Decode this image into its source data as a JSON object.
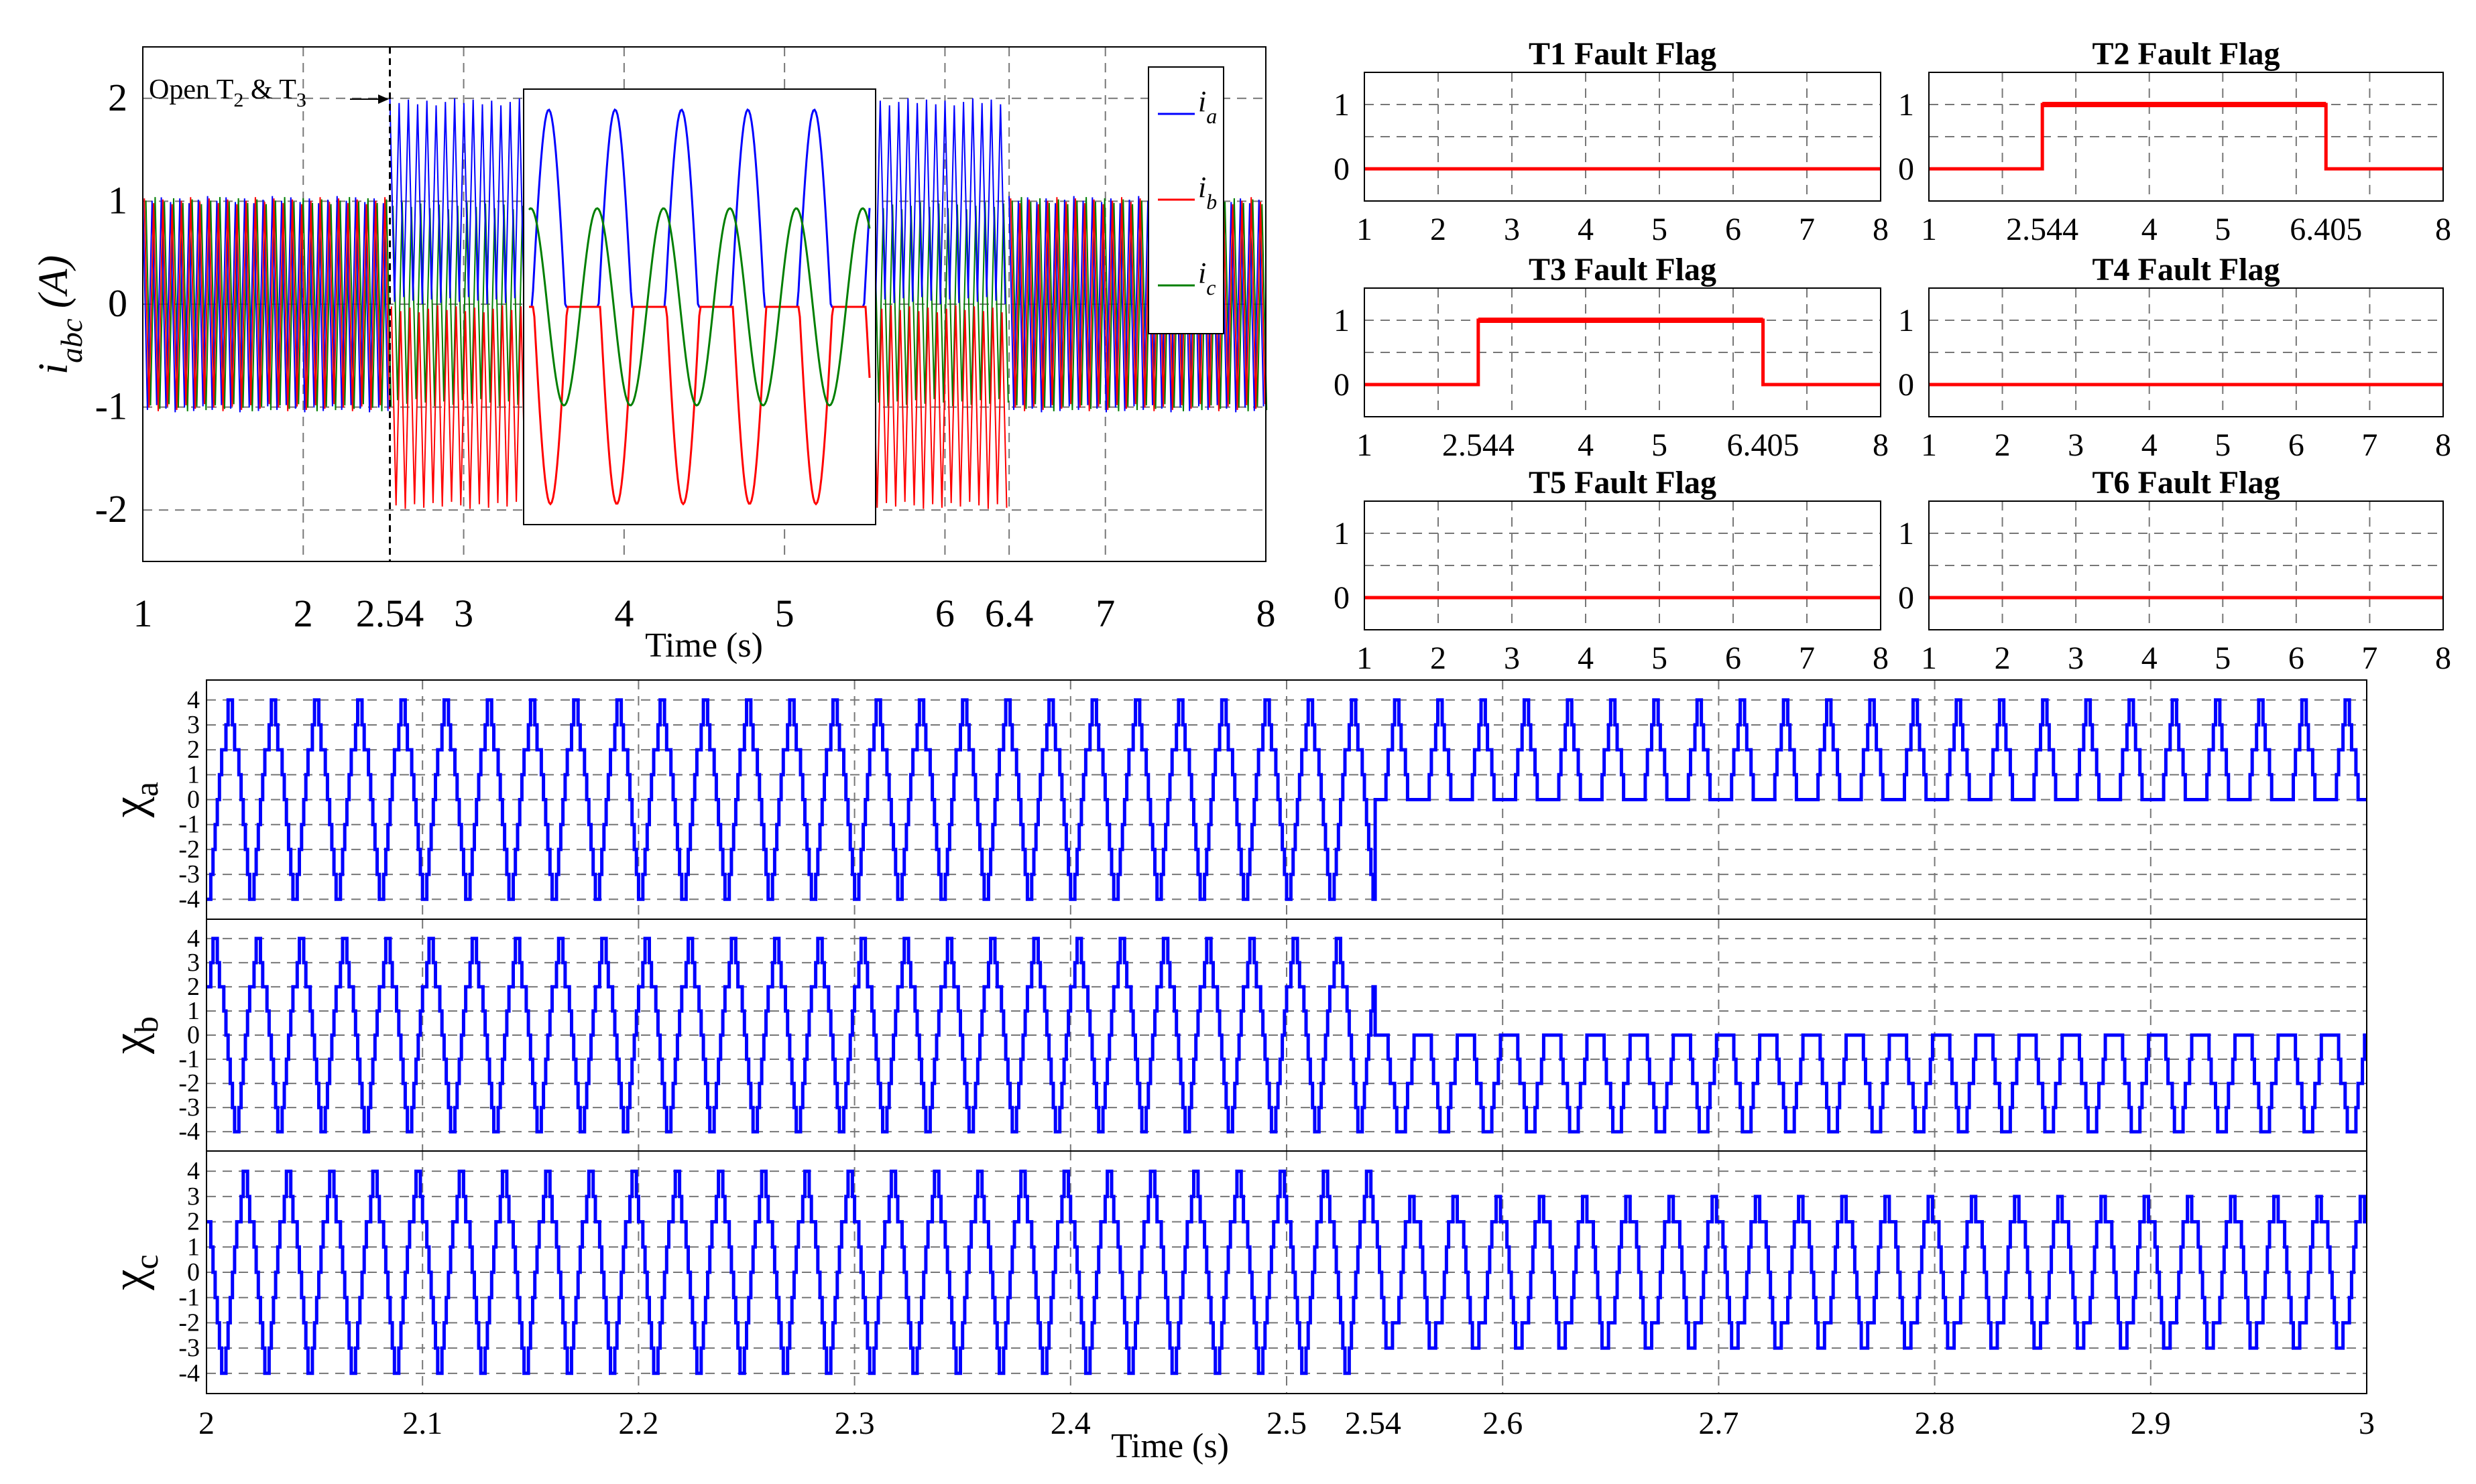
{
  "colors": {
    "ia": "#0000ff",
    "ib": "#ff0000",
    "ic": "#007f00",
    "flag": "#ff0000",
    "chi": "#0000ff"
  },
  "chart_data": [
    {
      "id": "currents",
      "type": "line",
      "title": "",
      "xlabel": "Time (s)",
      "ylabel_main": "i",
      "ylabel_sub": "abc",
      "ylabel_unit": "(A)",
      "xlim": [
        1,
        8
      ],
      "ylim": [
        -2.5,
        2.5
      ],
      "xticks": [
        "1",
        "2",
        "2.54",
        "3",
        "4",
        "5",
        "6",
        "6.4",
        "7",
        "8"
      ],
      "yticks": [
        "2",
        "1",
        "0",
        "-1",
        "-2"
      ],
      "annotation": {
        "text": "Open T",
        "sub1": "2",
        "amp": " & T",
        "sub2": "3",
        "x": 2.54
      },
      "legend": [
        {
          "main": "i",
          "sub": "a"
        },
        {
          "main": "i",
          "sub": "b"
        },
        {
          "main": "i",
          "sub": "c"
        }
      ],
      "series": [
        {
          "name": "ia",
          "segments": [
            {
              "x": [
                1,
                2.54
              ],
              "min": -1.05,
              "max": 1.05
            },
            {
              "x": [
                2.54,
                6.4
              ],
              "min": 0.0,
              "max": 2.0
            },
            {
              "x": [
                6.4,
                8
              ],
              "min": -1.05,
              "max": 1.05
            }
          ]
        },
        {
          "name": "ib",
          "segments": [
            {
              "x": [
                1,
                2.54
              ],
              "min": -1.05,
              "max": 1.05
            },
            {
              "x": [
                2.54,
                6.4
              ],
              "min": -2.0,
              "max": 0.0
            },
            {
              "x": [
                6.4,
                8
              ],
              "min": -1.05,
              "max": 1.05
            }
          ]
        },
        {
          "name": "ic",
          "segments": [
            {
              "x": [
                1,
                2.54
              ],
              "min": -1.05,
              "max": 1.05
            },
            {
              "x": [
                2.54,
                6.4
              ],
              "min": -1.0,
              "max": 1.0
            },
            {
              "x": [
                6.4,
                8
              ],
              "min": -1.05,
              "max": 1.05
            }
          ]
        }
      ],
      "inset": {
        "type": "line",
        "cycles": 5,
        "ia_peak": 2.0,
        "ib_peak": -2.0,
        "ic_amplitude": 1.0
      }
    },
    {
      "id": "T1",
      "type": "line",
      "title": "T1 Fault Flag",
      "xlim": [
        1,
        8
      ],
      "ylim": [
        -0.5,
        1.5
      ],
      "xticks": [
        "1",
        "2",
        "3",
        "4",
        "5",
        "6",
        "7",
        "8"
      ],
      "yticks": [
        "1",
        "0"
      ],
      "flag_on": null
    },
    {
      "id": "T2",
      "type": "line",
      "title": "T2 Fault Flag",
      "xlim": [
        1,
        8
      ],
      "ylim": [
        -0.5,
        1.5
      ],
      "xticks": [
        "1",
        "2.544",
        "4",
        "5",
        "6.405",
        "8"
      ],
      "yticks": [
        "1",
        "0"
      ],
      "flag_on": [
        2.544,
        6.405
      ]
    },
    {
      "id": "T3",
      "type": "line",
      "title": "T3 Fault Flag",
      "xlim": [
        1,
        8
      ],
      "ylim": [
        -0.5,
        1.5
      ],
      "xticks": [
        "1",
        "2.544",
        "4",
        "5",
        "6.405",
        "8"
      ],
      "yticks": [
        "1",
        "0"
      ],
      "flag_on": [
        2.544,
        6.405
      ]
    },
    {
      "id": "T4",
      "type": "line",
      "title": "T4 Fault Flag",
      "xlim": [
        1,
        8
      ],
      "ylim": [
        -0.5,
        1.5
      ],
      "xticks": [
        "1",
        "2",
        "3",
        "4",
        "5",
        "6",
        "7",
        "8"
      ],
      "yticks": [
        "1",
        "0"
      ],
      "flag_on": null
    },
    {
      "id": "T5",
      "type": "line",
      "title": "T5 Fault Flag",
      "xlim": [
        1,
        8
      ],
      "ylim": [
        -0.5,
        1.5
      ],
      "xticks": [
        "1",
        "2",
        "3",
        "4",
        "5",
        "6",
        "7",
        "8"
      ],
      "yticks": [
        "1",
        "0"
      ],
      "flag_on": null
    },
    {
      "id": "T6",
      "type": "line",
      "title": "T6 Fault Flag",
      "xlim": [
        1,
        8
      ],
      "ylim": [
        -0.5,
        1.5
      ],
      "xticks": [
        "1",
        "2",
        "3",
        "4",
        "5",
        "6",
        "7",
        "8"
      ],
      "yticks": [
        "1",
        "0"
      ],
      "flag_on": null
    },
    {
      "id": "chi",
      "type": "line",
      "xlabel": "Time (s)",
      "xlim": [
        2,
        3
      ],
      "xticks": [
        "2",
        "2.1",
        "2.2",
        "2.3",
        "2.4",
        "2.5",
        "2.54",
        "2.6",
        "2.7",
        "2.8",
        "2.9",
        "3"
      ],
      "yticks": [
        "4",
        "3",
        "2",
        "1",
        "0",
        "-1",
        "-2",
        "-3",
        "-4"
      ],
      "ylim": [
        -4.8,
        4.8
      ],
      "fault_time": 2.54,
      "period": 0.02,
      "series": [
        {
          "name": "χa",
          "label": "χ",
          "sub": "a",
          "phase": 0.0,
          "pre": [
            -4,
            -4,
            -3,
            -2,
            -1,
            0,
            1,
            2,
            2,
            3,
            4,
            4,
            3,
            2,
            2,
            1,
            0,
            -1,
            -2,
            -3
          ],
          "post": [
            0,
            0,
            0,
            0,
            0,
            0,
            1,
            2,
            2,
            3,
            4,
            4,
            3,
            2,
            2,
            1,
            0,
            0,
            0,
            0
          ]
        },
        {
          "name": "χb",
          "label": "χ",
          "sub": "b",
          "phase": 0.3333,
          "pre": [
            -4,
            -4,
            -3,
            -2,
            -1,
            0,
            1,
            2,
            2,
            3,
            4,
            4,
            3,
            2,
            2,
            1,
            0,
            -1,
            -2,
            -3
          ],
          "post": [
            -4,
            -4,
            -3,
            -2,
            -2,
            -1,
            0,
            0,
            0,
            0,
            0,
            0,
            0,
            0,
            -1,
            -2,
            -2,
            -3,
            -4,
            -4
          ]
        },
        {
          "name": "χc",
          "label": "χ",
          "sub": "c",
          "phase": 0.6667,
          "pre": [
            -4,
            -4,
            -3,
            -2,
            -1,
            0,
            1,
            2,
            2,
            3,
            4,
            4,
            3,
            2,
            2,
            1,
            0,
            -1,
            -2,
            -3
          ],
          "post": [
            -3,
            -3,
            -2,
            -2,
            -2,
            -1,
            0,
            1,
            2,
            2,
            3,
            3,
            2,
            2,
            2,
            1,
            0,
            -1,
            -2,
            -3
          ]
        }
      ]
    }
  ]
}
